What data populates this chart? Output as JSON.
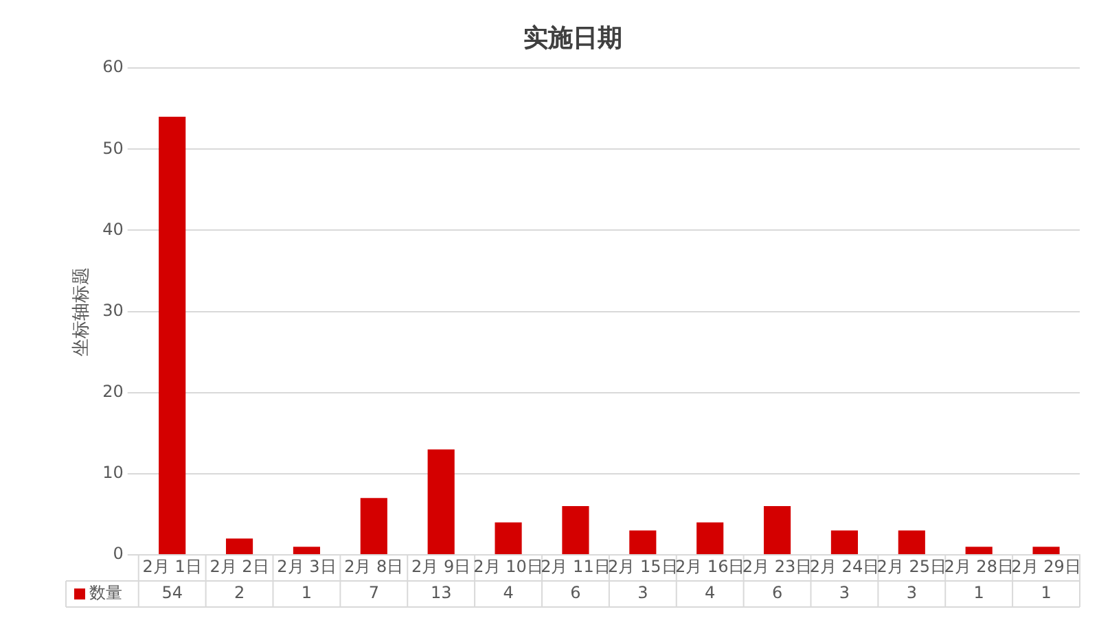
{
  "chart_data": {
    "type": "bar",
    "title": "实施日期",
    "ylabel": "坐标轴标题",
    "categories": [
      "2月 1日",
      "2月 2日",
      "2月 3日",
      "2月 8日",
      "2月 9日",
      "2月 10日",
      "2月 11日",
      "2月 15日",
      "2月 16日",
      "2月 23日",
      "2月 24日",
      "2月 25日",
      "2月 28日",
      "2月 29日"
    ],
    "series": [
      {
        "name": "数量",
        "color": "#d40000",
        "values": [
          54,
          2,
          1,
          7,
          13,
          4,
          6,
          3,
          4,
          6,
          3,
          3,
          1,
          1
        ]
      }
    ],
    "ylim": [
      0,
      60
    ],
    "yticks": [
      0,
      10,
      20,
      30,
      40,
      50,
      60
    ],
    "grid": "y",
    "data_labels": true
  }
}
